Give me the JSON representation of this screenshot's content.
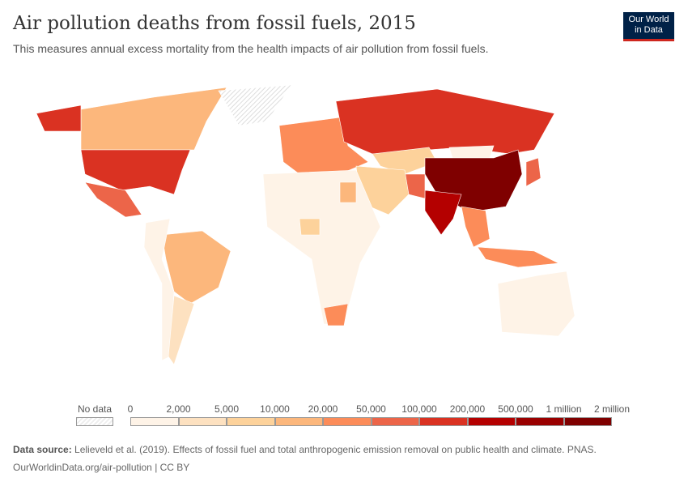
{
  "header": {
    "title": "Air pollution deaths from fossil fuels, 2015",
    "subtitle": "This measures annual excess mortality from the health impacts of air pollution from fossil fuels.",
    "logo_line1": "Our World",
    "logo_line2": "in Data"
  },
  "legend": {
    "no_data_label": "No data",
    "tick_labels": [
      "0",
      "2,000",
      "5,000",
      "10,000",
      "20,000",
      "50,000",
      "100,000",
      "200,000",
      "500,000",
      "1 million",
      "2 million"
    ],
    "bin_colors": [
      "#fef3e7",
      "#fde1c0",
      "#fdd29b",
      "#fcb77c",
      "#fc8c59",
      "#ec6549",
      "#da3222",
      "#b40000",
      "#9a0000",
      "#7f0000"
    ],
    "bins": [
      [
        0,
        2000
      ],
      [
        2000,
        5000
      ],
      [
        5000,
        10000
      ],
      [
        10000,
        20000
      ],
      [
        20000,
        50000
      ],
      [
        50000,
        100000
      ],
      [
        100000,
        200000
      ],
      [
        200000,
        500000
      ],
      [
        500000,
        1000000
      ],
      [
        1000000,
        2000000
      ]
    ]
  },
  "map_regions": [
    {
      "name": "Canada",
      "bin": 3
    },
    {
      "name": "United States",
      "bin": 6
    },
    {
      "name": "Alaska",
      "bin": 6
    },
    {
      "name": "Greenland",
      "bin": null
    },
    {
      "name": "Mexico",
      "bin": 5
    },
    {
      "name": "Brazil",
      "bin": 3
    },
    {
      "name": "South America (other)",
      "bin": 0
    },
    {
      "name": "Argentina",
      "bin": 1
    },
    {
      "name": "Europe",
      "bin": 4
    },
    {
      "name": "Russia",
      "bin": 6
    },
    {
      "name": "Kazakhstan",
      "bin": 2
    },
    {
      "name": "Mongolia",
      "bin": 0
    },
    {
      "name": "China",
      "bin": 9
    },
    {
      "name": "India",
      "bin": 7
    },
    {
      "name": "Pakistan",
      "bin": 5
    },
    {
      "name": "Middle East",
      "bin": 2
    },
    {
      "name": "Africa",
      "bin": 0
    },
    {
      "name": "Nigeria",
      "bin": 2
    },
    {
      "name": "Egypt",
      "bin": 3
    },
    {
      "name": "South Africa",
      "bin": 4
    },
    {
      "name": "Southeast Asia",
      "bin": 4
    },
    {
      "name": "Indonesia",
      "bin": 4
    },
    {
      "name": "Japan",
      "bin": 5
    },
    {
      "name": "Australia",
      "bin": 0
    }
  ],
  "footer": {
    "source_label": "Data source:",
    "source_text": "Lelieveld et al. (2019). Effects of fossil fuel and total anthropogenic emission removal on public health and climate. PNAS.",
    "url": "OurWorldinData.org/air-pollution | CC BY"
  }
}
